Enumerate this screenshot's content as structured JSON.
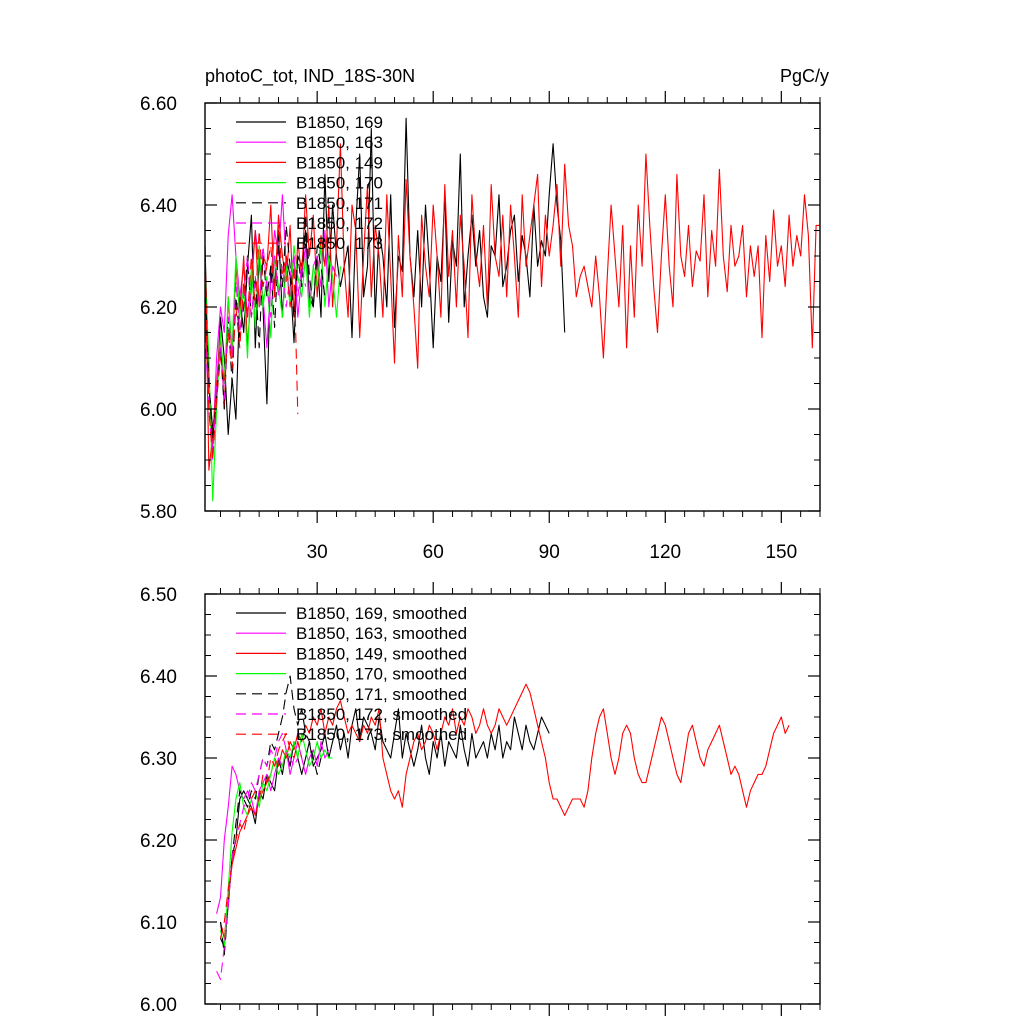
{
  "figure_title": "photoC_tot, IND_18S-30N",
  "figure_units": "PgC/y",
  "chart_data": [
    {
      "type": "line",
      "title": "photoC_tot, IND_18S-30N",
      "units": "PgC/y",
      "xlim": [
        1,
        160
      ],
      "ylim": [
        5.8,
        6.6
      ],
      "xticks": [
        30,
        60,
        90,
        120,
        150
      ],
      "xtick_labels": [
        "30",
        "60",
        "90",
        "120",
        "150"
      ],
      "yticks": [
        5.8,
        6.0,
        6.2,
        6.4,
        6.6
      ],
      "ytick_labels": [
        "5.80",
        "6.00",
        "6.20",
        "6.40",
        "6.60"
      ],
      "legend_position": "top-left",
      "series": [
        {
          "name": "B1850, 169",
          "color": "#000000",
          "dash": "solid",
          "x_start": 1,
          "values": [
            6.32,
            6.05,
            5.96,
            6.02,
            6.18,
            6.1,
            5.95,
            6.06,
            5.98,
            6.22,
            6.15,
            6.28,
            6.38,
            6.12,
            6.3,
            6.2,
            6.01,
            6.28,
            6.24,
            6.35,
            6.18,
            6.3,
            6.26,
            6.13,
            6.3,
            6.28,
            6.35,
            6.22,
            6.2,
            6.3,
            6.18,
            6.46,
            6.25,
            6.4,
            6.3,
            6.24,
            6.28,
            6.32,
            6.14,
            6.36,
            6.5,
            6.22,
            6.28,
            6.55,
            6.18,
            6.35,
            6.3,
            6.2,
            6.42,
            6.16,
            6.3,
            6.27,
            6.57,
            6.3,
            6.22,
            6.35,
            6.2,
            6.4,
            6.28,
            6.12,
            6.3,
            6.25,
            6.42,
            6.17,
            6.33,
            6.28,
            6.5,
            6.2,
            6.3,
            6.38,
            6.28,
            6.35,
            6.22,
            6.18,
            6.32,
            6.3,
            6.42,
            6.24,
            6.28,
            6.35,
            6.38,
            6.25,
            6.34,
            6.3,
            6.22,
            6.4,
            6.28,
            6.33,
            6.3,
            6.42,
            6.52,
            6.4,
            6.33,
            6.15
          ]
        },
        {
          "name": "B1850, 163",
          "color": "#ff00ff",
          "dash": "solid",
          "x_start": 1,
          "values": [
            6.18,
            6.05,
            5.92,
            6.1,
            6.2,
            6.15,
            6.34,
            6.42,
            6.3,
            6.22,
            6.28,
            6.18,
            6.26,
            6.35,
            6.28,
            6.22,
            6.12,
            6.25,
            6.35,
            6.3,
            6.42,
            6.28,
            6.22,
            6.3,
            6.18,
            6.26,
            6.32,
            6.2,
            6.28,
            6.3,
            6.24,
            6.35,
            6.2,
            6.28,
            6.26
          ]
        },
        {
          "name": "B1850, 149",
          "color": "#ff0000",
          "dash": "solid",
          "x_start": 1,
          "values": [
            6.32,
            5.88,
            5.95,
            6.05,
            6.15,
            6.0,
            6.22,
            6.1,
            6.28,
            6.18,
            6.3,
            6.12,
            6.24,
            6.35,
            6.2,
            6.3,
            6.28,
            6.4,
            6.22,
            6.38,
            6.3,
            6.25,
            6.36,
            6.18,
            6.33,
            6.26,
            6.42,
            6.3,
            6.38,
            6.22,
            6.34,
            6.28,
            6.4,
            6.2,
            6.32,
            6.52,
            6.28,
            6.18,
            6.4,
            6.35,
            6.14,
            6.3,
            6.44,
            6.22,
            6.36,
            6.3,
            6.18,
            6.42,
            6.26,
            6.09,
            6.34,
            6.22,
            6.45,
            6.3,
            6.2,
            6.08,
            6.38,
            6.28,
            6.22,
            6.4,
            6.3,
            6.18,
            6.44,
            6.26,
            6.35,
            6.2,
            6.38,
            6.28,
            6.14,
            6.42,
            6.3,
            6.24,
            6.36,
            6.2,
            6.44,
            6.3,
            6.26,
            6.38,
            6.22,
            6.4,
            6.3,
            6.18,
            6.42,
            6.28,
            6.34,
            6.4,
            6.46,
            6.24,
            6.38,
            6.3,
            6.36,
            6.44,
            6.28,
            6.48,
            6.36,
            6.32,
            6.22,
            6.26,
            6.28,
            6.24,
            6.2,
            6.3,
            6.22,
            6.1,
            6.26,
            6.4,
            6.3,
            6.2,
            6.36,
            6.12,
            6.32,
            6.18,
            6.4,
            6.28,
            6.5,
            6.36,
            6.24,
            6.15,
            6.3,
            6.42,
            6.28,
            6.2,
            6.46,
            6.3,
            6.26,
            6.36,
            6.24,
            6.31,
            6.29,
            6.42,
            6.22,
            6.35,
            6.28,
            6.47,
            6.3,
            6.23,
            6.36,
            6.28,
            6.3,
            6.36,
            6.22,
            6.32,
            6.26,
            6.32,
            6.14,
            6.34,
            6.25,
            6.39,
            6.28,
            6.32,
            6.24,
            6.38,
            6.28,
            6.34,
            6.3,
            6.42,
            6.34,
            6.12,
            6.36,
            6.36
          ]
        },
        {
          "name": "B1850, 170",
          "color": "#00ff00",
          "dash": "solid",
          "x_start": 1,
          "values": [
            6.27,
            6.1,
            5.82,
            6.0,
            6.15,
            6.05,
            6.22,
            6.12,
            6.3,
            6.18,
            6.24,
            6.1,
            6.28,
            6.16,
            6.32,
            6.2,
            6.26,
            6.14,
            6.3,
            6.24,
            6.18,
            6.28,
            6.2,
            6.32,
            6.26,
            6.22,
            6.3,
            6.18,
            6.28,
            6.24,
            6.32,
            6.2,
            6.3,
            6.26,
            6.18,
            6.28
          ]
        },
        {
          "name": "B1850, 171",
          "color": "#000000",
          "dash": "long-dash",
          "x_start": 1,
          "values": [
            6.25,
            6.05,
            5.94,
            6.02,
            6.12,
            6.0,
            6.18,
            6.05,
            6.22,
            6.14,
            6.2,
            6.3,
            6.18,
            6.26,
            6.12,
            6.3,
            6.22,
            6.28,
            6.16,
            6.32,
            6.24,
            6.36,
            6.28,
            6.18,
            6.3,
            6.24,
            6.38,
            6.26,
            6.2,
            6.32,
            6.28,
            6.22
          ]
        },
        {
          "name": "B1850, 172",
          "color": "#ff00ff",
          "dash": "long-dash",
          "x_start": 1,
          "values": [
            6.15,
            6.0,
            5.9,
            6.05,
            6.12,
            6.02,
            6.18,
            6.1,
            6.25,
            6.15,
            6.22,
            6.3,
            6.18,
            6.26,
            6.2,
            6.32,
            6.24,
            6.18,
            6.3,
            6.22,
            6.28,
            6.2,
            6.26,
            6.3,
            6.22,
            6.28,
            6.24
          ]
        },
        {
          "name": "B1850, 173",
          "color": "#ff0000",
          "dash": "long-dash",
          "x_start": 1,
          "values": [
            6.3,
            6.0,
            5.9,
            6.02,
            6.1,
            6.05,
            6.15,
            6.08,
            6.2,
            6.12,
            6.25,
            6.18,
            6.3,
            6.2,
            6.35,
            6.24,
            6.28,
            6.32,
            6.22,
            6.36,
            6.26,
            6.3,
            6.2,
            6.28,
            5.99
          ]
        }
      ]
    },
    {
      "type": "line",
      "title": "",
      "xlim": [
        1,
        160
      ],
      "ylim": [
        6.0,
        6.5
      ],
      "xticks": [
        30,
        60,
        90,
        120,
        150
      ],
      "xtick_labels": [],
      "yticks": [
        6.0,
        6.1,
        6.2,
        6.3,
        6.4,
        6.5
      ],
      "ytick_labels": [
        "6.00",
        "6.10",
        "6.20",
        "6.30",
        "6.40",
        "6.50"
      ],
      "legend_position": "top-left",
      "series": [
        {
          "name": "B1850, 169, smoothed",
          "color": "#000000",
          "dash": "solid",
          "x_start": 5,
          "values": [
            6.08,
            6.07,
            6.12,
            6.18,
            6.2,
            6.25,
            6.26,
            6.25,
            6.24,
            6.22,
            6.26,
            6.25,
            6.28,
            6.27,
            6.26,
            6.3,
            6.28,
            6.31,
            6.29,
            6.32,
            6.3,
            6.28,
            6.3,
            6.32,
            6.29,
            6.3,
            6.31,
            6.33,
            6.3,
            6.32,
            6.34,
            6.31,
            6.33,
            6.3,
            6.34,
            6.36,
            6.32,
            6.35,
            6.34,
            6.33,
            6.31,
            6.35,
            6.32,
            6.31,
            6.3,
            6.33,
            6.36,
            6.3,
            6.33,
            6.31,
            6.29,
            6.31,
            6.34,
            6.3,
            6.28,
            6.32,
            6.3,
            6.33,
            6.29,
            6.32,
            6.31,
            6.3,
            6.34,
            6.31,
            6.29,
            6.33,
            6.3,
            6.31,
            6.32,
            6.3,
            6.33,
            6.31,
            6.34,
            6.3,
            6.32,
            6.31,
            6.35,
            6.33,
            6.31,
            6.34,
            6.32,
            6.31,
            6.33,
            6.35,
            6.34,
            6.33
          ]
        },
        {
          "name": "B1850, 163, smoothed",
          "color": "#ff00ff",
          "dash": "solid",
          "x_start": 4,
          "values": [
            6.11,
            6.13,
            6.2,
            6.24,
            6.29,
            6.28,
            6.26,
            6.25,
            6.26,
            6.25,
            6.23,
            6.26,
            6.27,
            6.28,
            6.26,
            6.28,
            6.3,
            6.29,
            6.31,
            6.28,
            6.3,
            6.32,
            6.3,
            6.28,
            6.3,
            6.31,
            6.29,
            6.32,
            6.3,
            6.31
          ]
        },
        {
          "name": "B1850, 149, smoothed",
          "color": "#ff0000",
          "dash": "solid",
          "x_start": 5,
          "values": [
            6.1,
            6.08,
            6.13,
            6.17,
            6.19,
            6.21,
            6.22,
            6.23,
            6.24,
            6.23,
            6.25,
            6.26,
            6.27,
            6.28,
            6.3,
            6.29,
            6.31,
            6.3,
            6.32,
            6.31,
            6.33,
            6.32,
            6.34,
            6.33,
            6.35,
            6.34,
            6.36,
            6.33,
            6.35,
            6.34,
            6.36,
            6.37,
            6.35,
            6.33,
            6.34,
            6.33,
            6.32,
            6.34,
            6.33,
            6.35,
            6.34,
            6.36,
            6.3,
            6.28,
            6.26,
            6.25,
            6.26,
            6.24,
            6.28,
            6.3,
            6.32,
            6.33,
            6.31,
            6.32,
            6.34,
            6.33,
            6.31,
            6.33,
            6.35,
            6.34,
            6.36,
            6.33,
            6.35,
            6.34,
            6.36,
            6.35,
            6.33,
            6.34,
            6.36,
            6.34,
            6.33,
            6.34,
            6.36,
            6.35,
            6.34,
            6.35,
            6.36,
            6.37,
            6.38,
            6.39,
            6.38,
            6.36,
            6.34,
            6.32,
            6.3,
            6.27,
            6.25,
            6.25,
            6.24,
            6.23,
            6.24,
            6.25,
            6.25,
            6.25,
            6.24,
            6.26,
            6.3,
            6.33,
            6.35,
            6.36,
            6.33,
            6.3,
            6.28,
            6.3,
            6.33,
            6.34,
            6.33,
            6.3,
            6.28,
            6.27,
            6.27,
            6.29,
            6.31,
            6.33,
            6.35,
            6.34,
            6.32,
            6.3,
            6.28,
            6.27,
            6.3,
            6.33,
            6.34,
            6.32,
            6.3,
            6.29,
            6.31,
            6.32,
            6.33,
            6.34,
            6.32,
            6.3,
            6.28,
            6.29,
            6.28,
            6.26,
            6.24,
            6.26,
            6.27,
            6.28,
            6.28,
            6.29,
            6.31,
            6.33,
            6.34,
            6.35,
            6.33,
            6.34
          ]
        },
        {
          "name": "B1850, 170, smoothed",
          "color": "#00ff00",
          "dash": "solid",
          "x_start": 5,
          "values": [
            6.09,
            6.07,
            6.14,
            6.21,
            6.25,
            6.27,
            6.24,
            6.23,
            6.25,
            6.26,
            6.24,
            6.27,
            6.26,
            6.28,
            6.3,
            6.28,
            6.29,
            6.31,
            6.3,
            6.32,
            6.3,
            6.33,
            6.31,
            6.29,
            6.3,
            6.32,
            6.3,
            6.31,
            6.3,
            6.3
          ]
        },
        {
          "name": "B1850, 171, smoothed",
          "color": "#000000",
          "dash": "long-dash",
          "x_start": 5,
          "values": [
            6.1,
            6.06,
            6.12,
            6.18,
            6.22,
            6.26,
            6.25,
            6.24,
            6.26,
            6.25,
            6.28,
            6.3,
            6.29,
            6.32,
            6.31,
            6.33,
            6.35,
            6.38,
            6.4,
            6.36,
            6.34,
            6.36,
            6.33,
            6.32,
            6.3,
            6.28,
            6.3
          ]
        },
        {
          "name": "B1850, 172, smoothed",
          "color": "#ff00ff",
          "dash": "long-dash",
          "x_start": 4,
          "values": [
            6.04,
            6.03,
            6.07,
            6.12,
            6.18,
            6.2,
            6.22,
            6.24,
            6.25,
            6.27,
            6.26,
            6.28,
            6.3,
            6.29,
            6.31,
            6.3,
            6.32,
            6.33,
            6.31,
            6.3,
            6.29,
            6.3
          ]
        },
        {
          "name": "B1850, 173, smoothed",
          "color": "#ff0000",
          "dash": "long-dash",
          "x_start": 5,
          "values": [
            6.08,
            6.1,
            6.14,
            6.17,
            6.2,
            6.22,
            6.21,
            6.23,
            6.25,
            6.26,
            6.25,
            6.28,
            6.27,
            6.3,
            6.29,
            6.31,
            6.32,
            6.33,
            6.31,
            6.3,
            6.32,
            6.3
          ]
        }
      ]
    }
  ]
}
